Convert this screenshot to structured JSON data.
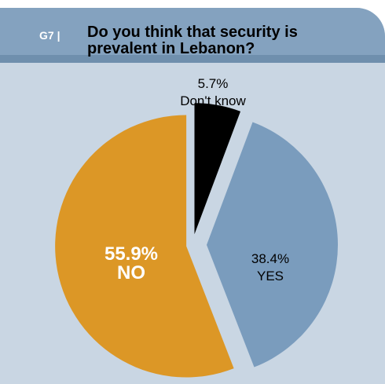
{
  "header": {
    "code": "G7 |",
    "title": "Do you think that security is prevalent in Lebanon?"
  },
  "colors": {
    "card_bg": "#c9d6e3",
    "header_bg": "#84a2bf",
    "no": "#dc9726",
    "yes": "#7a9cbd",
    "dont_know": "#000000"
  },
  "chart_data": {
    "type": "pie",
    "title": "Do you think that security is prevalent in Lebanon?",
    "slices": [
      {
        "name": "Don't know",
        "value": 5.7,
        "value_label": "5.7%",
        "label": "Don't know",
        "color": "#000000"
      },
      {
        "name": "YES",
        "value": 38.4,
        "value_label": "38.4%",
        "label": "YES",
        "color": "#7a9cbd"
      },
      {
        "name": "NO",
        "value": 55.9,
        "value_label": "55.9%",
        "label": "NO",
        "color": "#dc9726"
      }
    ]
  }
}
